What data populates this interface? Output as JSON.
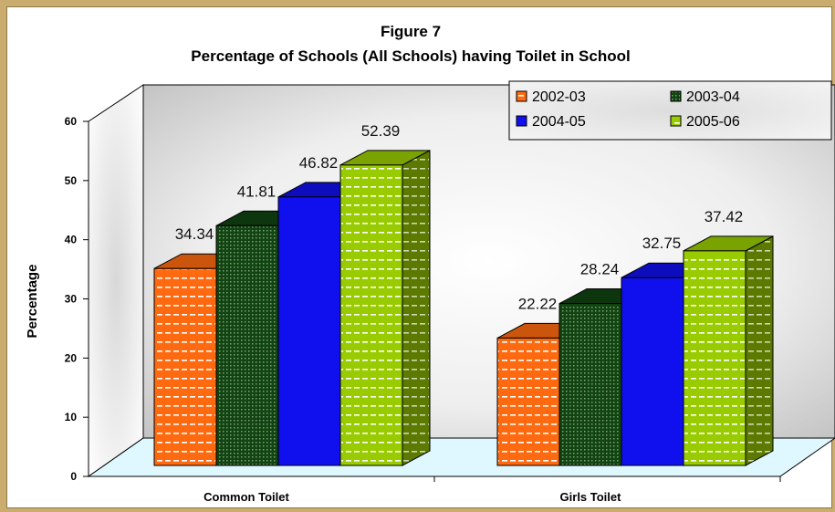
{
  "chart_data": {
    "type": "bar",
    "title": "Figure 7",
    "subtitle": "Percentage of Schools (All Schools) having Toilet in School",
    "xlabel": "",
    "ylabel": "Percentage",
    "ylim": [
      0,
      60
    ],
    "yticks": [
      "0",
      "10",
      "20",
      "30",
      "40",
      "50",
      "60"
    ],
    "categories": [
      "Common Toilet",
      "Girls Toilet"
    ],
    "series": [
      {
        "name": "2002-03",
        "values": [
          34.34,
          22.22
        ],
        "labels": [
          "34.34",
          "22.22"
        ],
        "color": "#ff6a10",
        "pattern": "dashes"
      },
      {
        "name": "2003-04",
        "values": [
          41.81,
          28.24
        ],
        "labels": [
          "41.81",
          "28.24"
        ],
        "color": "#114411",
        "pattern": "dots"
      },
      {
        "name": "2004-05",
        "values": [
          46.82,
          32.75
        ],
        "labels": [
          "46.82",
          "32.75"
        ],
        "color": "#1010ee",
        "pattern": "solid"
      },
      {
        "name": "2005-06",
        "values": [
          52.39,
          37.42
        ],
        "labels": [
          "52.39",
          "37.42"
        ],
        "color": "#99cc00",
        "pattern": "dashes"
      }
    ],
    "legend_position": "top-right",
    "grid": false,
    "style": "3d-column"
  },
  "colors": {
    "background": "#c9ac6e",
    "panel": "#ffffff",
    "floor": "#dff8ff"
  }
}
